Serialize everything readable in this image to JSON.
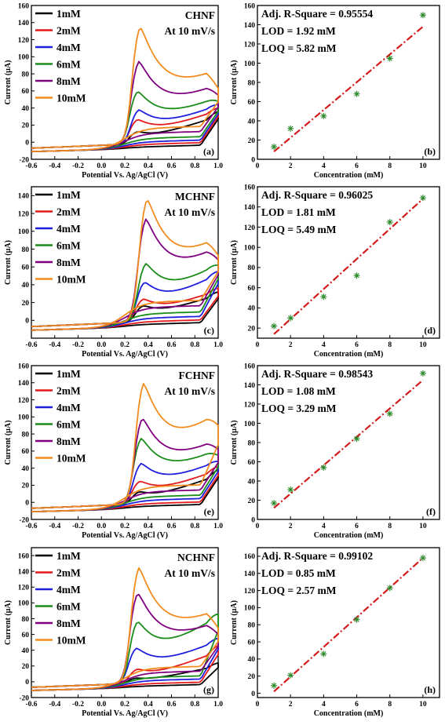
{
  "palette": [
    "#000000",
    "#e41a1c",
    "#1f1fdd",
    "#1a8c1a",
    "#800080",
    "#f28c1e"
  ],
  "fit_color": "#d41a1a",
  "marker_color": "#2a8a2a",
  "chart_data": [
    {
      "type": "line",
      "panel": "(a)",
      "annotation": [
        "CHNF",
        "At 10 mV/s"
      ],
      "xlabel": "Potential Vs. Ag/AgCl (V)",
      "ylabel": "Current (µA)",
      "xlim": [
        -0.6,
        1.0
      ],
      "ylim": [
        -20,
        160
      ],
      "xticks": [
        "-0.6",
        "-0.4",
        "-0.2",
        "0.0",
        "0.2",
        "0.4",
        "0.6",
        "0.8",
        "1.0"
      ],
      "yticks": [
        "-20",
        "0",
        "20",
        "40",
        "60",
        "80",
        "100",
        "120",
        "140",
        "160"
      ],
      "series": [
        {
          "name": "1mM",
          "peak": 18,
          "ip": 0.31,
          "end": 36,
          "rev": 2
        },
        {
          "name": "2mM",
          "peak": 33,
          "ip": 0.31,
          "end": 40,
          "rev": 5
        },
        {
          "name": "4mM",
          "peak": 45,
          "ip": 0.32,
          "end": 44,
          "rev": 8
        },
        {
          "name": "6mM",
          "peak": 68,
          "ip": 0.31,
          "end": 48,
          "rev": 12
        },
        {
          "name": "8mM",
          "peak": 105,
          "ip": 0.32,
          "end": 55,
          "rev": 18
        },
        {
          "name": "10mM",
          "peak": 148,
          "ip": 0.33,
          "end": 63,
          "rev": 24
        }
      ]
    },
    {
      "type": "scatter",
      "panel": "(b)",
      "annotation": [
        "Adj. R-Square = 0.95554",
        "LOD = 1.92 mM",
        "LOQ = 5.82 mM"
      ],
      "xlabel": "Concentration (mM)",
      "ylabel": "Current (µA)",
      "xlim": [
        0,
        11
      ],
      "ylim": [
        0,
        160
      ],
      "xticks": [
        "0",
        "2",
        "4",
        "6",
        "8",
        "10"
      ],
      "yticks": [
        "0",
        "20",
        "40",
        "60",
        "80",
        "100",
        "120",
        "140",
        "160"
      ],
      "x": [
        1,
        2,
        4,
        6,
        8,
        10
      ],
      "y": [
        13,
        32,
        45,
        68,
        105,
        150
      ],
      "fit": [
        [
          1,
          8
        ],
        [
          10,
          138
        ]
      ]
    },
    {
      "type": "line",
      "panel": "(c)",
      "annotation": [
        "MCHNF",
        "At 10 mV/s"
      ],
      "xlabel": "Potential Vs. Ag/AgCl (V)",
      "ylabel": "Current (µA)",
      "xlim": [
        -0.6,
        1.0
      ],
      "ylim": [
        -20,
        150
      ],
      "xticks": [
        "-0.6",
        "-0.4",
        "-0.2",
        "0.0",
        "0.2",
        "0.4",
        "0.6",
        "0.8",
        "1.0"
      ],
      "yticks": [
        "0",
        "20",
        "40",
        "60",
        "80",
        "100",
        "120",
        "140"
      ],
      "series": [
        {
          "name": "1mM",
          "peak": 22,
          "ip": 0.36,
          "end": 32,
          "rev": 3
        },
        {
          "name": "2mM",
          "peak": 30,
          "ip": 0.36,
          "end": 36,
          "rev": 6
        },
        {
          "name": "4mM",
          "peak": 50,
          "ip": 0.37,
          "end": 55,
          "rev": 10
        },
        {
          "name": "6mM",
          "peak": 72,
          "ip": 0.38,
          "end": 62,
          "rev": 15
        },
        {
          "name": "8mM",
          "peak": 125,
          "ip": 0.38,
          "end": 68,
          "rev": 22
        },
        {
          "name": "10mM",
          "peak": 149,
          "ip": 0.39,
          "end": 73,
          "rev": 28
        }
      ]
    },
    {
      "type": "scatter",
      "panel": "(d)",
      "annotation": [
        "Adj. R-Square = 0.96025",
        "LOD = 1.81 mM",
        "LOQ = 5.49 mM"
      ],
      "xlabel": "Concentration (mM)",
      "ylabel": "Current (µA)",
      "xlim": [
        0,
        11
      ],
      "ylim": [
        10,
        160
      ],
      "xticks": [
        "0",
        "2",
        "4",
        "6",
        "8",
        "10"
      ],
      "yticks": [
        "20",
        "40",
        "60",
        "80",
        "100",
        "120",
        "140",
        "160"
      ],
      "x": [
        1,
        2,
        4,
        6,
        8,
        10
      ],
      "y": [
        22,
        30,
        51,
        72,
        125,
        149
      ],
      "fit": [
        [
          1,
          14
        ],
        [
          10,
          148
        ]
      ]
    },
    {
      "type": "line",
      "panel": "(e)",
      "annotation": [
        "FCHNF",
        "At 10 mV/s"
      ],
      "xlabel": "Potential Vs. Ag/AgCl (V)",
      "ylabel": "Current (µA)",
      "xlim": [
        -0.6,
        1.0
      ],
      "ylim": [
        -20,
        160
      ],
      "xticks": [
        "-0.6",
        "-0.4",
        "-0.2",
        "0.0",
        "0.2",
        "0.4",
        "0.6",
        "0.8",
        "1.0"
      ],
      "yticks": [
        "-20",
        "0",
        "20",
        "40",
        "60",
        "80",
        "100",
        "120",
        "140",
        "160"
      ],
      "series": [
        {
          "name": "1mM",
          "peak": 18,
          "ip": 0.33,
          "end": 38,
          "rev": 3
        },
        {
          "name": "2mM",
          "peak": 31,
          "ip": 0.33,
          "end": 42,
          "rev": 6
        },
        {
          "name": "4mM",
          "peak": 53,
          "ip": 0.34,
          "end": 48,
          "rev": 10
        },
        {
          "name": "6mM",
          "peak": 84,
          "ip": 0.34,
          "end": 55,
          "rev": 14
        },
        {
          "name": "8mM",
          "peak": 109,
          "ip": 0.35,
          "end": 62,
          "rev": 20
        },
        {
          "name": "10mM",
          "peak": 152,
          "ip": 0.36,
          "end": 90,
          "rev": 26
        }
      ]
    },
    {
      "type": "scatter",
      "panel": "(f)",
      "annotation": [
        "Adj. R-Square = 0.98543",
        "LOD = 1.08 mM",
        "LOQ = 3.29 mM"
      ],
      "xlabel": "Concentration (mM)",
      "ylabel": "Current (µA)",
      "xlim": [
        0,
        11
      ],
      "ylim": [
        0,
        160
      ],
      "xticks": [
        "0",
        "2",
        "4",
        "6",
        "8",
        "10"
      ],
      "yticks": [
        "0",
        "20",
        "40",
        "60",
        "80",
        "100",
        "120",
        "140",
        "160"
      ],
      "x": [
        1,
        2,
        4,
        6,
        8,
        10
      ],
      "y": [
        17,
        31,
        54,
        84,
        110,
        152
      ],
      "fit": [
        [
          1,
          12
        ],
        [
          10,
          145
        ]
      ]
    },
    {
      "type": "line",
      "panel": "(g)",
      "annotation": [
        "NCHNF",
        "At 10 mV/s"
      ],
      "xlabel": "Potential Vs. Ag/AgCl (V)",
      "ylabel": "Current (µA)",
      "xlim": [
        -0.6,
        1.0
      ],
      "ylim": [
        -20,
        170
      ],
      "xticks": [
        "-0.6",
        "-0.4",
        "-0.2",
        "0.0",
        "0.2",
        "0.4",
        "0.6",
        "0.8",
        "1.0"
      ],
      "yticks": [
        "-20",
        "0",
        "20",
        "40",
        "60",
        "80",
        "100",
        "120",
        "140",
        "160"
      ],
      "series": [
        {
          "name": "1mM",
          "peak": 10,
          "ip": 0.3,
          "end": 24,
          "rev": 2
        },
        {
          "name": "2mM",
          "peak": 22,
          "ip": 0.31,
          "end": 46,
          "rev": 5
        },
        {
          "name": "4mM",
          "peak": 50,
          "ip": 0.3,
          "end": 55,
          "rev": 9
        },
        {
          "name": "6mM",
          "peak": 86,
          "ip": 0.31,
          "end": 86,
          "rev": 13
        },
        {
          "name": "8mM",
          "peak": 124,
          "ip": 0.31,
          "end": 60,
          "rev": 19
        },
        {
          "name": "10mM",
          "peak": 158,
          "ip": 0.32,
          "end": 68,
          "rev": 25
        }
      ]
    },
    {
      "type": "scatter",
      "panel": "(h)",
      "annotation": [
        "Adj. R-Square = 0.99102",
        "LOD = 0.85 mM",
        "LOQ = 2.57 mM"
      ],
      "xlabel": "Concentration (mM)",
      "ylabel": "Current (µA)",
      "xlim": [
        0,
        11
      ],
      "ylim": [
        -5,
        170
      ],
      "xticks": [
        "0",
        "2",
        "4",
        "6",
        "8",
        "10"
      ],
      "yticks": [
        "0",
        "20",
        "40",
        "60",
        "80",
        "100",
        "120",
        "140",
        "160"
      ],
      "x": [
        1,
        2,
        4,
        6,
        8,
        10
      ],
      "y": [
        9,
        21,
        46,
        86,
        123,
        158
      ],
      "fit": [
        [
          1,
          2
        ],
        [
          10,
          158
        ]
      ]
    }
  ]
}
